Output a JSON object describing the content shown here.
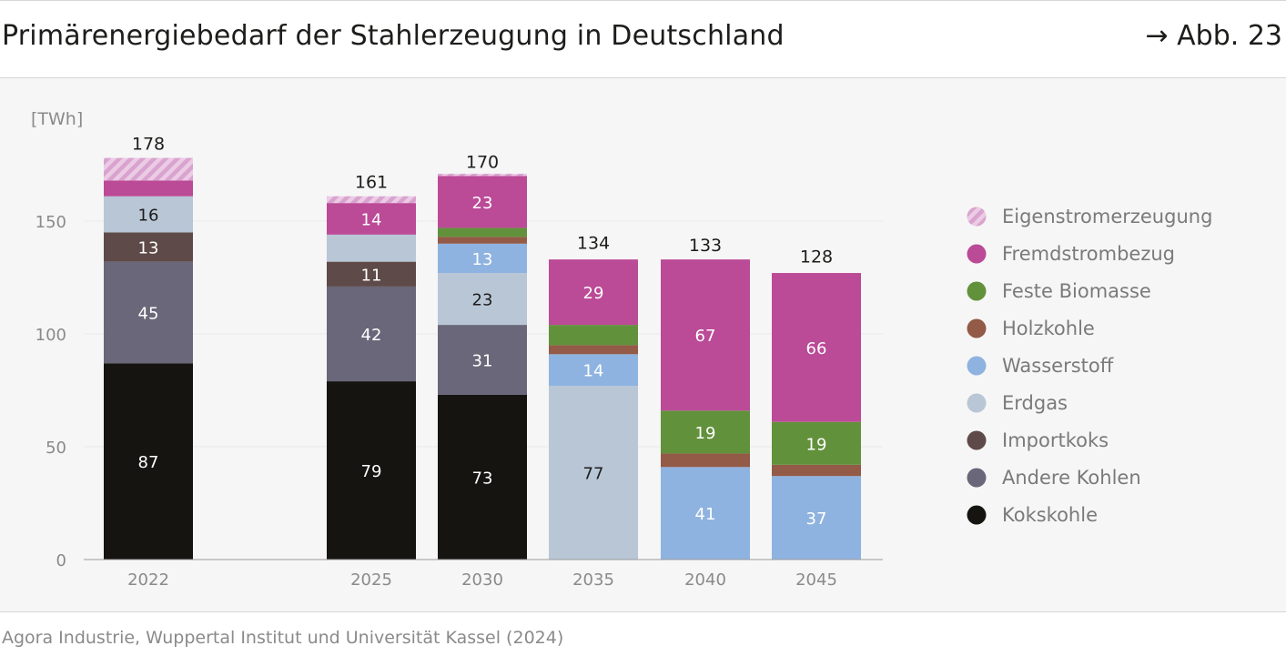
{
  "header": {
    "title": "Primärenergiebedarf der Stahlerzeugung in Deutschland",
    "figure_ref": "→ Abb. 23"
  },
  "footer": {
    "source": "Agora Industrie, Wuppertal Institut und Universität Kassel (2024)"
  },
  "colors": {
    "Eigenstromerzeugung": "#d9a3cf",
    "Fremdstrombezug": "#bb4a97",
    "Feste Biomasse": "#62913c",
    "Holzkohle": "#935a47",
    "Wasserstoff": "#8fb3e0",
    "Erdgas": "#b8c6d6",
    "Importkoks": "#5e4a48",
    "Andere Kohlen": "#696779",
    "Kokskohle": "#151411"
  },
  "chart_data": {
    "type": "bar",
    "stacked": true,
    "unit_label": "[TWh]",
    "categories": [
      "2022",
      "2025",
      "2030",
      "2035",
      "2040",
      "2045"
    ],
    "ylim": [
      0,
      175
    ],
    "yticks": [
      0,
      50,
      100,
      150
    ],
    "grid": true,
    "legend_position": "right",
    "totals": [
      178,
      161,
      170,
      134,
      133,
      128
    ],
    "series": [
      {
        "name": "Kokskohle",
        "values": [
          87,
          79,
          73,
          0,
          0,
          0
        ],
        "labels": [
          "87",
          "79",
          "73",
          "",
          "",
          ""
        ]
      },
      {
        "name": "Andere Kohlen",
        "values": [
          45,
          42,
          31,
          0,
          0,
          0
        ],
        "labels": [
          "45",
          "42",
          "31",
          "",
          "",
          ""
        ]
      },
      {
        "name": "Importkoks",
        "values": [
          13,
          11,
          0,
          0,
          0,
          0
        ],
        "labels": [
          "13",
          "11",
          "",
          "",
          "",
          ""
        ]
      },
      {
        "name": "Erdgas",
        "values": [
          16,
          12,
          23,
          77,
          0,
          0
        ],
        "labels": [
          "16",
          "",
          "23",
          "77",
          "",
          ""
        ]
      },
      {
        "name": "Wasserstoff",
        "values": [
          0,
          0,
          13,
          14,
          41,
          37
        ],
        "labels": [
          "",
          "",
          "13",
          "14",
          "41",
          "37"
        ]
      },
      {
        "name": "Holzkohle",
        "values": [
          0,
          0,
          3,
          4,
          6,
          5
        ],
        "labels": [
          "",
          "",
          "",
          "",
          "",
          ""
        ]
      },
      {
        "name": "Feste Biomasse",
        "values": [
          0,
          0,
          4,
          9,
          19,
          19
        ],
        "labels": [
          "",
          "",
          "",
          "",
          "19",
          "19"
        ]
      },
      {
        "name": "Fremdstrombezug",
        "values": [
          7,
          14,
          23,
          29,
          67,
          66
        ],
        "labels": [
          "",
          "14",
          "23",
          "29",
          "67",
          "66"
        ]
      },
      {
        "name": "Eigenstromerzeugung",
        "values": [
          10,
          3,
          1,
          0,
          0,
          0
        ],
        "labels": [
          "",
          "",
          "",
          "",
          "",
          ""
        ],
        "hatched": true
      }
    ],
    "legend": [
      "Eigenstromerzeugung",
      "Fremdstrombezug",
      "Feste Biomasse",
      "Holzkohle",
      "Wasserstoff",
      "Erdgas",
      "Importkoks",
      "Andere Kohlen",
      "Kokskohle"
    ]
  }
}
